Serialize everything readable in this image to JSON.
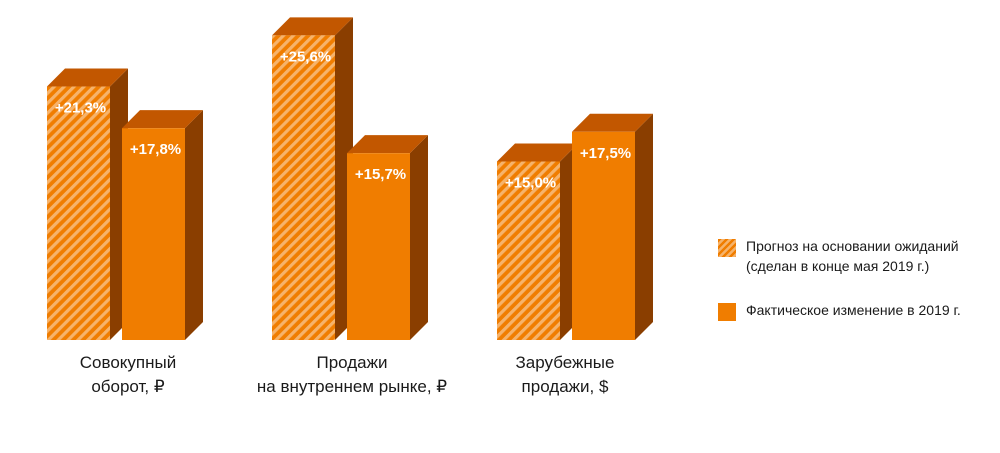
{
  "chart_data": {
    "type": "bar",
    "categories": [
      [
        "Совокупный",
        "оборот, ₽"
      ],
      [
        "Продажи",
        "на внутреннем рынке, ₽"
      ],
      [
        "Зарубежные",
        "продажи, $"
      ]
    ],
    "series": [
      {
        "name": "Прогноз на основании ожиданий (сделан в конце мая 2019 г.)",
        "values": [
          21.3,
          25.6,
          15.0
        ],
        "labels": [
          "+21,3%",
          "+25,6%",
          "+15,0%"
        ],
        "style": "hatched"
      },
      {
        "name": "Фактическое изменение в 2019 г.",
        "values": [
          17.8,
          15.7,
          17.5
        ],
        "labels": [
          "+17,8%",
          "+15,7%",
          "+17,5%"
        ],
        "style": "solid"
      }
    ],
    "ylim": [
      0,
      27
    ],
    "grid": false,
    "legend_position": "right"
  },
  "legend": {
    "hatched_line1": "Прогноз на основании ожиданий",
    "hatched_line2": "(сделан в конце мая 2019 г.)",
    "solid": "Фактическое изменение в 2019 г."
  },
  "colors": {
    "front": "#f07d00",
    "top": "#c25700",
    "side": "#8a3e00",
    "hatch_light": "#f6b36b"
  }
}
